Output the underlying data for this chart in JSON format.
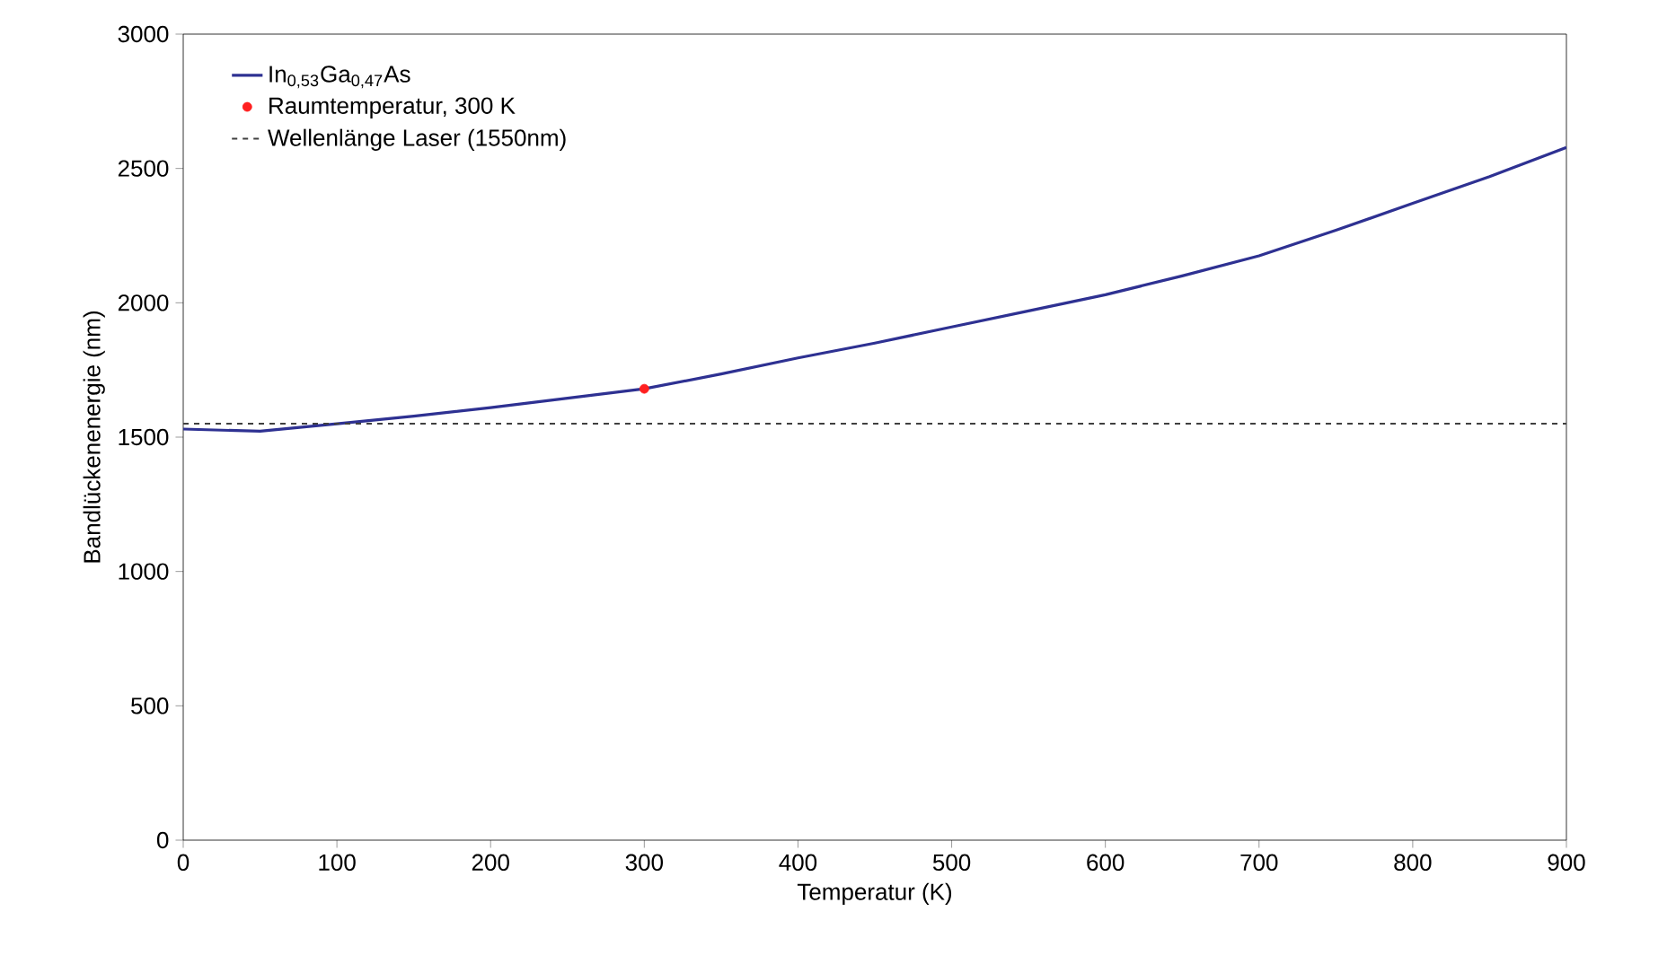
{
  "chart_data": {
    "type": "line",
    "xlabel": "Temperatur (K)",
    "ylabel": "Bandlückenenergie (nm)",
    "xlim": [
      0,
      900
    ],
    "ylim": [
      0,
      3000
    ],
    "xticks": [
      0,
      100,
      200,
      300,
      400,
      500,
      600,
      700,
      800,
      900
    ],
    "yticks": [
      0,
      500,
      1000,
      1500,
      2000,
      2500,
      3000
    ],
    "grid": false,
    "legend": "top left",
    "series": [
      {
        "name": "In$_{0,53}$Ga$_{0,47}$As",
        "color": "#2e3192",
        "line_style": "solid",
        "marker": "none",
        "x": [
          0,
          50,
          100,
          150,
          200,
          250,
          300,
          350,
          400,
          450,
          500,
          550,
          600,
          650,
          700,
          750,
          800,
          850,
          900
        ],
        "values": [
          1530,
          1522,
          1550,
          1578,
          1610,
          1645,
          1680,
          1735,
          1795,
          1850,
          1910,
          1970,
          2030,
          2100,
          2175,
          2270,
          2370,
          2470,
          2578
        ]
      },
      {
        "name": "Raumtemperatur, 300 K",
        "type": "scatter",
        "color": "#ff2020",
        "marker": "circle",
        "x": [
          300
        ],
        "values": [
          1680
        ]
      },
      {
        "name": "Wellenlänge Laser (1550nm)",
        "color": "#404040",
        "line_style": "dashed",
        "marker": "none",
        "x": [
          0,
          900
        ],
        "values": [
          1550,
          1550
        ]
      }
    ]
  }
}
